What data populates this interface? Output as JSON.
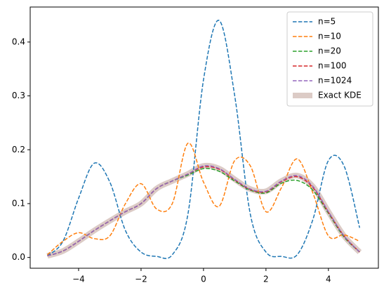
{
  "chart_data": {
    "type": "line",
    "x": [
      -5,
      -4.5,
      -4,
      -3.5,
      -3,
      -2.5,
      -2,
      -1.5,
      -1,
      -0.5,
      0,
      0.5,
      1,
      1.5,
      2,
      2.5,
      3,
      3.5,
      4,
      4.5,
      5
    ],
    "series": [
      {
        "name": "n=5",
        "color": "#1f77b4",
        "style": "dashed",
        "values": [
          0.003,
          0.03,
          0.11,
          0.175,
          0.14,
          0.05,
          0.01,
          0.002,
          0.005,
          0.08,
          0.33,
          0.44,
          0.3,
          0.08,
          0.01,
          0.002,
          0.005,
          0.07,
          0.18,
          0.17,
          0.055
        ]
      },
      {
        "name": "n=10",
        "color": "#ff7f0e",
        "style": "dashed",
        "values": [
          0.005,
          0.03,
          0.046,
          0.035,
          0.04,
          0.1,
          0.137,
          0.09,
          0.1,
          0.212,
          0.14,
          0.095,
          0.18,
          0.17,
          0.085,
          0.13,
          0.183,
          0.12,
          0.04,
          0.042,
          0.03
        ]
      },
      {
        "name": "n=20",
        "color": "#2ca02c",
        "style": "dashed",
        "values": [
          0.003,
          0.012,
          0.03,
          0.05,
          0.068,
          0.085,
          0.1,
          0.128,
          0.142,
          0.153,
          0.165,
          0.16,
          0.142,
          0.125,
          0.12,
          0.138,
          0.143,
          0.125,
          0.082,
          0.038,
          0.01
        ]
      },
      {
        "name": "n=100",
        "color": "#d62728",
        "style": "dashed",
        "values": [
          0.003,
          0.012,
          0.03,
          0.05,
          0.068,
          0.085,
          0.1,
          0.128,
          0.142,
          0.155,
          0.168,
          0.164,
          0.144,
          0.126,
          0.122,
          0.141,
          0.15,
          0.13,
          0.084,
          0.04,
          0.01
        ]
      },
      {
        "name": "n=1024",
        "color": "#9467bd",
        "style": "dashed",
        "values": [
          0.003,
          0.012,
          0.03,
          0.05,
          0.068,
          0.085,
          0.1,
          0.128,
          0.142,
          0.155,
          0.17,
          0.165,
          0.145,
          0.127,
          0.123,
          0.142,
          0.152,
          0.132,
          0.085,
          0.04,
          0.01
        ]
      },
      {
        "name": "Exact KDE",
        "color": "#dccbc6",
        "style": "thick",
        "values": [
          0.003,
          0.012,
          0.03,
          0.05,
          0.068,
          0.085,
          0.1,
          0.128,
          0.142,
          0.155,
          0.17,
          0.165,
          0.145,
          0.127,
          0.123,
          0.142,
          0.152,
          0.132,
          0.085,
          0.04,
          0.01
        ]
      }
    ],
    "xlim": [
      -5.55,
      5.6
    ],
    "ylim": [
      -0.02,
      0.465
    ],
    "xticks": [
      -4,
      -2,
      0,
      2,
      4
    ],
    "yticks": [
      0.0,
      0.1,
      0.2,
      0.3,
      0.4
    ],
    "legend": "upper right"
  }
}
